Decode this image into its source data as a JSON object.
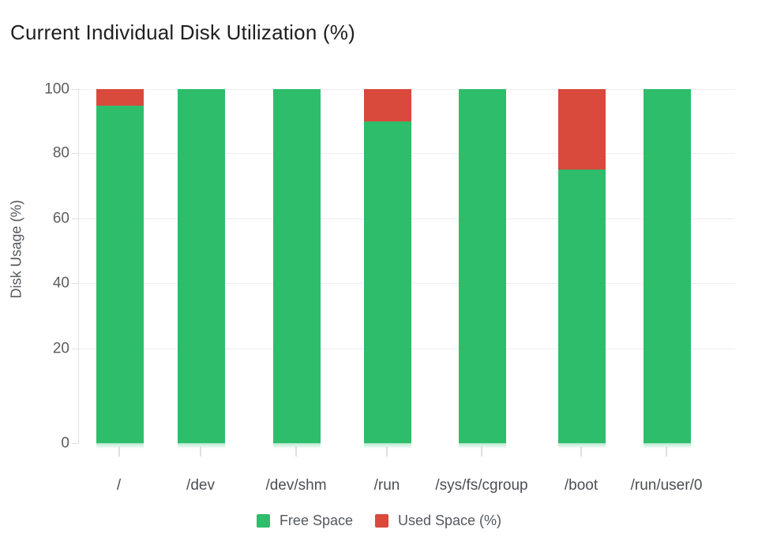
{
  "chart_data": {
    "type": "bar",
    "stacked": true,
    "title": "Current Individual Disk Utilization (%)",
    "ylabel": "Disk Usage (%)",
    "xlabel": "",
    "ylim": [
      0,
      100
    ],
    "yticks": [
      100,
      80,
      60,
      40,
      20,
      0
    ],
    "grid": true,
    "legend_position": "bottom",
    "categories": [
      "/",
      "/dev",
      "/dev/shm",
      "/run",
      "/sys/fs/cgroup",
      "/boot",
      "/run/user/0"
    ],
    "series": [
      {
        "name": "Free Space",
        "color": "#2ebd6b",
        "values": [
          95,
          100,
          100,
          90,
          100,
          75,
          100
        ]
      },
      {
        "name": "Used Space (%)",
        "color": "#d9493c",
        "values": [
          5,
          0,
          0,
          10,
          0,
          25,
          0
        ]
      }
    ]
  },
  "legend": {
    "items": [
      {
        "label": "Free Space",
        "color": "#2ebd6b"
      },
      {
        "label": "Used Space (%)",
        "color": "#d9493c"
      }
    ]
  }
}
